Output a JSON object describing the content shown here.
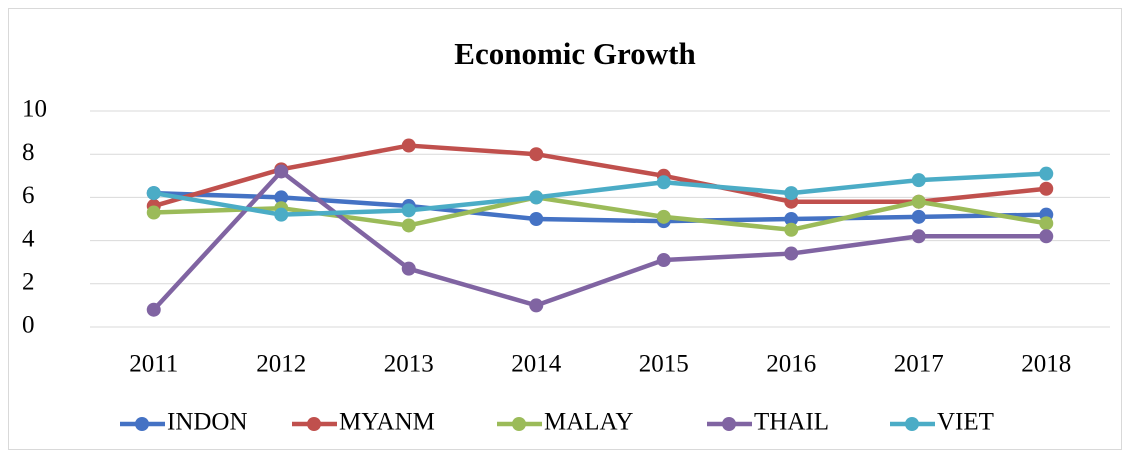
{
  "chart_data": {
    "type": "line",
    "title": "Economic Growth",
    "categories": [
      "2011",
      "2012",
      "2013",
      "2014",
      "2015",
      "2016",
      "2017",
      "2018"
    ],
    "series": [
      {
        "name": "INDON",
        "color": "#4472c4",
        "values": [
          6.2,
          6.0,
          5.6,
          5.0,
          4.9,
          5.0,
          5.1,
          5.2
        ]
      },
      {
        "name": "MYANM",
        "color": "#c0504d",
        "values": [
          5.6,
          7.3,
          8.4,
          8.0,
          7.0,
          5.8,
          5.8,
          6.4
        ]
      },
      {
        "name": "MALAY",
        "color": "#9bbb59",
        "values": [
          5.3,
          5.5,
          4.7,
          6.0,
          5.1,
          4.5,
          5.8,
          4.8
        ]
      },
      {
        "name": "THAIL",
        "color": "#8064a2",
        "values": [
          0.8,
          7.2,
          2.7,
          1.0,
          3.1,
          3.4,
          4.2,
          4.2
        ]
      },
      {
        "name": "VIET",
        "color": "#4bacc6",
        "values": [
          6.2,
          5.2,
          5.4,
          6.0,
          6.7,
          6.2,
          6.8,
          7.1
        ]
      }
    ],
    "ylim": [
      0,
      10
    ],
    "yticks": [
      0,
      2,
      4,
      6,
      8,
      10
    ],
    "grid": true,
    "legend": "bottom"
  }
}
